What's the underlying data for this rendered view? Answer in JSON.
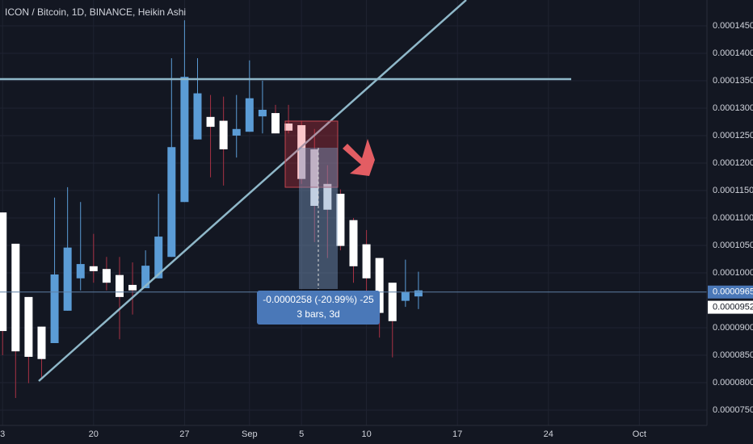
{
  "chart_data": {
    "type": "candlestick",
    "title": "ICON / Bitcoin, 1D, BINANCE, Heikin Ashi",
    "up_color": "#5b9cd6",
    "down_color": "#ffffff",
    "down_wick_color": "#a83245",
    "open": [
      0.000111,
      0.0001053,
      9.56e-05,
      9.02e-05,
      8.72e-05,
      9.31e-05,
      9.9e-05,
      0.0001012,
      0.0001007,
      9.96e-05,
      9.78e-05,
      9.72e-05,
      9.9e-05,
      0.0001029,
      0.0001129,
      0.0001243,
      0.0001284,
      0.0001277,
      0.000125,
      0.0001257,
      0.0001285,
      0.0001291,
      0.0001272,
      0.0001269,
      0.0001225,
      0.0001162,
      0.0001144,
      0.0001096,
      0.0001052,
      0.0001027,
      9.82e-05,
      9.49e-05,
      9.57e-05
    ],
    "high": [
      0.000111,
      0.0001053,
      9.56e-05,
      9.02e-05,
      0.0001137,
      0.0001156,
      0.0001129,
      0.0001071,
      0.0001029,
      0.0001029,
      0.0001019,
      0.0001041,
      0.0001144,
      0.0001391,
      0.000146,
      0.0001391,
      0.0001324,
      0.0001321,
      0.0001324,
      0.0001387,
      0.000135,
      0.0001306,
      0.0001306,
      0.0001277,
      0.0001262,
      0.0001196,
      0.0001152,
      0.00011,
      0.0001078,
      0.0001024,
      9.79e-05,
      0.0001024,
      0.0001002
    ],
    "low": [
      8.5e-05,
      7.72e-05,
      7.99e-05,
      8.06e-05,
      8.72e-05,
      9.31e-05,
      9.68e-05,
      9.82e-05,
      9.68e-05,
      8.79e-05,
      9.24e-05,
      9.72e-05,
      9.9e-05,
      0.0001029,
      0.0001129,
      0.0001243,
      0.0001174,
      0.0001159,
      0.000121,
      0.0001257,
      0.0001254,
      0.0001254,
      0.0001254,
      0.0001162,
      0.0001056,
      0.0001027,
      0.0001041,
      9.82e-05,
      9.46e-05,
      8.82e-05,
      8.46e-05,
      9.38e-05,
      9.34e-05
    ],
    "close": [
      8.94e-05,
      8.57e-05,
      8.47e-05,
      8.43e-05,
      9.97e-05,
      0.0001046,
      0.0001016,
      0.0001003,
      9.82e-05,
      9.56e-05,
      9.68e-05,
      0.0001013,
      0.0001066,
      0.0001229,
      0.0001357,
      0.0001327,
      0.0001266,
      0.0001225,
      0.0001262,
      0.0001318,
      0.0001297,
      0.0001254,
      0.0001259,
      0.0001171,
      0.0001122,
      0.0001115,
      0.0001049,
      0.0001012,
      9.9e-05,
      9.27e-05,
      9.12e-05,
      9.65e-05,
      9.68e-05
    ],
    "xlim": [
      -0.2,
      54.2
    ],
    "xticks": [
      {
        "value": 0,
        "label": "3"
      },
      {
        "value": 7,
        "label": "20"
      },
      {
        "value": 14,
        "label": "27"
      },
      {
        "value": 19,
        "label": "Sep"
      },
      {
        "value": 23,
        "label": "5"
      },
      {
        "value": 28,
        "label": "10"
      },
      {
        "value": 35,
        "label": "17"
      },
      {
        "value": 42,
        "label": "24"
      },
      {
        "value": 49,
        "label": "Oct"
      }
    ],
    "ylim": [
      7.22e-05,
      0.0001497
    ],
    "yticks": [
      {
        "value": 0.000145,
        "label": "0.0001450"
      },
      {
        "value": 0.00014,
        "label": "0.0001400"
      },
      {
        "value": 0.000135,
        "label": "0.0001350"
      },
      {
        "value": 0.00013,
        "label": "0.0001300"
      },
      {
        "value": 0.000125,
        "label": "0.0001250"
      },
      {
        "value": 0.00012,
        "label": "0.0001200"
      },
      {
        "value": 0.000115,
        "label": "0.0001150"
      },
      {
        "value": 0.00011,
        "label": "0.0001100"
      },
      {
        "value": 0.000105,
        "label": "0.0001050"
      },
      {
        "value": 0.0001,
        "label": "0.0001000"
      },
      {
        "value": 9e-05,
        "label": "0.0000900"
      },
      {
        "value": 8.5e-05,
        "label": "0.0000850"
      },
      {
        "value": 8e-05,
        "label": "0.0000800"
      },
      {
        "value": 7.5e-05,
        "label": "0.0000750"
      }
    ],
    "price_labels": [
      {
        "value": 9.65e-05,
        "label": "0.0000965"
      },
      {
        "value": 9.52e-05,
        "label": "0.0000952"
      }
    ],
    "measure_label": [
      "-0.0000258 (-20.99%) -25",
      "3 bars, 3d"
    ],
    "grid": true
  }
}
